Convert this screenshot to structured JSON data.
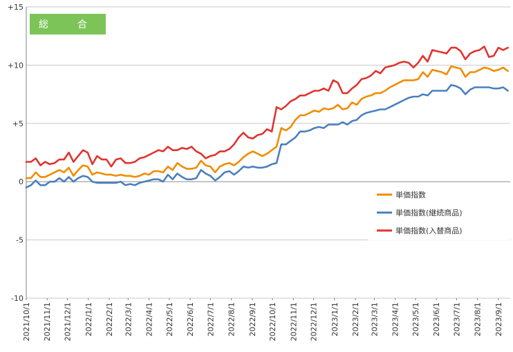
{
  "chart_data": {
    "type": "line",
    "title": "総　合",
    "xlabel": "",
    "ylabel": "",
    "ylim": [
      -10,
      15
    ],
    "yticks": [
      15,
      10,
      5,
      0,
      -5,
      -10
    ],
    "ytick_labels": [
      "+15",
      "+10",
      "+5",
      "0",
      "-5",
      "-10"
    ],
    "xtick_labels": [
      "2021/10/1",
      "2021/11/1",
      "2021/12/1",
      "2022/1/1",
      "2022/2/1",
      "2022/3/1",
      "2022/4/1",
      "2022/5/1",
      "2022/6/1",
      "2022/7/1",
      "2022/8/1",
      "2022/9/1",
      "2022/10/1",
      "2022/11/1",
      "2022/12/1",
      "2023/1/1",
      "2023/2/1",
      "2023/3/1",
      "2023/4/1",
      "2023/5/1",
      "2023/6/1",
      "2023/7/1",
      "2023/8/1",
      "2023/9/1"
    ],
    "grid": {
      "horizontal": true,
      "vertical": false
    },
    "legend_placement": "right-middle",
    "x_start": "2021-10-01",
    "x_interval": "weekly",
    "series": [
      {
        "name": "単価指数",
        "color": "#f08c00",
        "values": [
          0.3,
          0.3,
          0.8,
          0.4,
          0.4,
          0.6,
          0.8,
          1.0,
          0.8,
          1.2,
          0.5,
          1.0,
          1.4,
          1.3,
          0.6,
          0.8,
          0.7,
          0.6,
          0.6,
          0.5,
          0.6,
          0.5,
          0.5,
          0.4,
          0.5,
          0.7,
          0.6,
          0.9,
          0.9,
          0.8,
          1.3,
          1.0,
          1.6,
          1.3,
          1.1,
          1.1,
          1.2,
          1.8,
          1.4,
          1.3,
          0.8,
          1.3,
          1.5,
          1.6,
          1.4,
          1.7,
          2.1,
          2.4,
          2.6,
          2.4,
          2.2,
          2.4,
          2.7,
          3.0,
          4.6,
          4.4,
          4.7,
          5.3,
          5.7,
          5.7,
          5.9,
          6.1,
          6.0,
          6.3,
          6.2,
          6.3,
          6.6,
          6.2,
          6.3,
          6.8,
          6.6,
          7.1,
          7.3,
          7.4,
          7.6,
          7.6,
          7.8,
          8.1,
          8.3,
          8.5,
          8.7,
          8.7,
          8.7,
          8.8,
          9.4,
          9.0,
          9.6,
          9.5,
          9.4,
          9.2,
          9.9,
          9.8,
          9.7,
          9.0,
          9.4,
          9.4,
          9.6,
          9.8,
          9.7,
          9.5,
          9.6,
          9.8,
          9.5
        ]
      },
      {
        "name": "単価指数(継続商品)",
        "color": "#4a7fbf",
        "values": [
          -0.5,
          -0.3,
          0.1,
          -0.3,
          -0.3,
          0.0,
          0.0,
          0.3,
          0.0,
          0.4,
          0.0,
          0.3,
          0.5,
          0.4,
          0.0,
          -0.1,
          -0.1,
          -0.1,
          -0.1,
          -0.1,
          0.0,
          -0.3,
          -0.2,
          -0.3,
          -0.1,
          0.0,
          0.1,
          0.2,
          0.2,
          0.0,
          0.6,
          0.2,
          0.7,
          0.4,
          0.2,
          0.2,
          0.3,
          1.0,
          0.7,
          0.5,
          0.1,
          0.4,
          0.8,
          0.9,
          0.6,
          0.9,
          1.3,
          1.2,
          1.3,
          1.2,
          1.2,
          1.3,
          1.5,
          1.6,
          3.2,
          3.2,
          3.5,
          3.8,
          4.3,
          4.3,
          4.4,
          4.6,
          4.7,
          4.6,
          4.9,
          4.9,
          4.9,
          5.1,
          4.9,
          5.2,
          5.3,
          5.7,
          5.9,
          6.0,
          6.1,
          6.2,
          6.2,
          6.4,
          6.6,
          6.8,
          7.0,
          7.2,
          7.3,
          7.3,
          7.5,
          7.4,
          7.8,
          7.8,
          7.8,
          7.8,
          8.3,
          8.2,
          8.0,
          7.5,
          7.9,
          8.1,
          8.1,
          8.1,
          8.1,
          8.0,
          8.0,
          8.1,
          7.8
        ]
      },
      {
        "name": "単価指数(入替商品)",
        "color": "#e0332e",
        "values": [
          1.7,
          1.7,
          2.0,
          1.4,
          1.7,
          1.5,
          1.6,
          1.9,
          1.9,
          2.5,
          1.7,
          2.2,
          2.7,
          2.5,
          1.5,
          2.2,
          1.9,
          1.9,
          1.3,
          1.9,
          2.0,
          1.6,
          1.6,
          1.7,
          2.0,
          2.1,
          2.3,
          2.5,
          2.7,
          2.6,
          3.0,
          2.7,
          2.7,
          2.9,
          2.8,
          3.0,
          2.6,
          2.4,
          2.0,
          2.2,
          2.3,
          2.6,
          2.6,
          2.8,
          3.2,
          3.8,
          4.2,
          3.8,
          3.7,
          4.0,
          4.1,
          4.5,
          4.3,
          6.4,
          6.2,
          6.5,
          6.9,
          7.1,
          7.4,
          7.4,
          7.6,
          7.8,
          7.8,
          8.0,
          7.8,
          8.7,
          8.5,
          7.6,
          7.6,
          8.0,
          8.3,
          8.8,
          8.9,
          9.1,
          9.5,
          9.3,
          9.8,
          9.9,
          10.0,
          10.2,
          10.3,
          10.2,
          9.8,
          10.2,
          10.8,
          10.3,
          11.3,
          11.2,
          11.1,
          11.0,
          11.5,
          11.5,
          11.2,
          10.5,
          11.0,
          11.2,
          11.3,
          11.6,
          10.7,
          10.8,
          11.5,
          11.3,
          11.5
        ]
      }
    ]
  }
}
